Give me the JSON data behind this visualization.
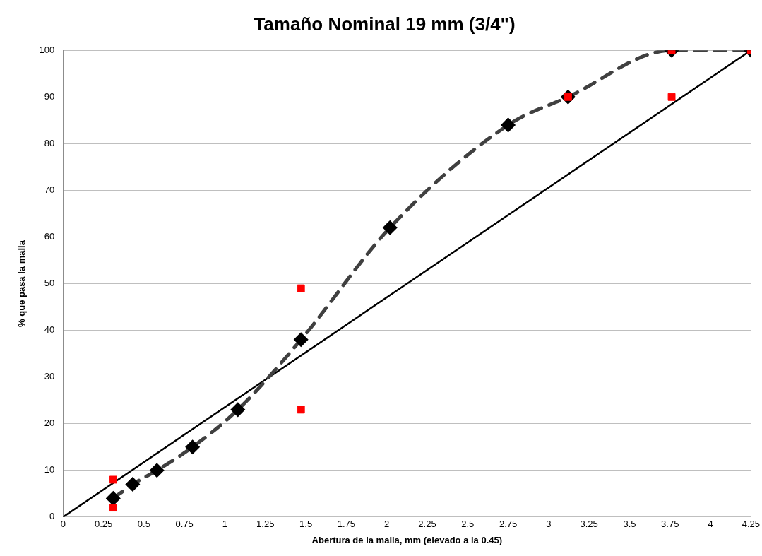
{
  "chart_data": {
    "type": "scatter",
    "title": "Tamaño Nominal 19 mm (3/4\")",
    "xlabel": "Abertura de la malla, mm (elevado a la 0.45)",
    "ylabel": "% que pasa la malla",
    "xlim": [
      0,
      4.25
    ],
    "xticks": [
      0,
      0.25,
      0.5,
      0.75,
      1,
      1.25,
      1.5,
      1.75,
      2,
      2.25,
      2.5,
      2.75,
      3,
      3.25,
      3.5,
      3.75,
      4,
      4.25
    ],
    "ylim": [
      0,
      100
    ],
    "yticks": [
      0,
      10,
      20,
      30,
      40,
      50,
      60,
      70,
      80,
      90,
      100
    ],
    "grid": "y",
    "legend": false,
    "series": [
      {
        "type": "line",
        "color": "#000000",
        "line_style": "solid",
        "x": [
          0,
          4.25
        ],
        "values": [
          0,
          100
        ]
      },
      {
        "type": "line",
        "color": "#404040",
        "marker": "diamond",
        "line_style": "dashed",
        "x": [
          0.31,
          0.43,
          0.58,
          0.8,
          1.08,
          1.47,
          2.02,
          2.75,
          3.12,
          3.76,
          4.25
        ],
        "values": [
          4,
          7,
          10,
          15,
          23,
          38,
          62,
          84,
          90,
          100,
          100
        ]
      },
      {
        "type": "scatter",
        "color": "#ff0000",
        "marker": "square",
        "x": [
          0.31,
          0.31,
          1.47,
          1.47,
          3.12,
          3.76,
          3.76,
          4.25
        ],
        "values": [
          8,
          2,
          49,
          23,
          90,
          100,
          90,
          100
        ]
      }
    ]
  }
}
